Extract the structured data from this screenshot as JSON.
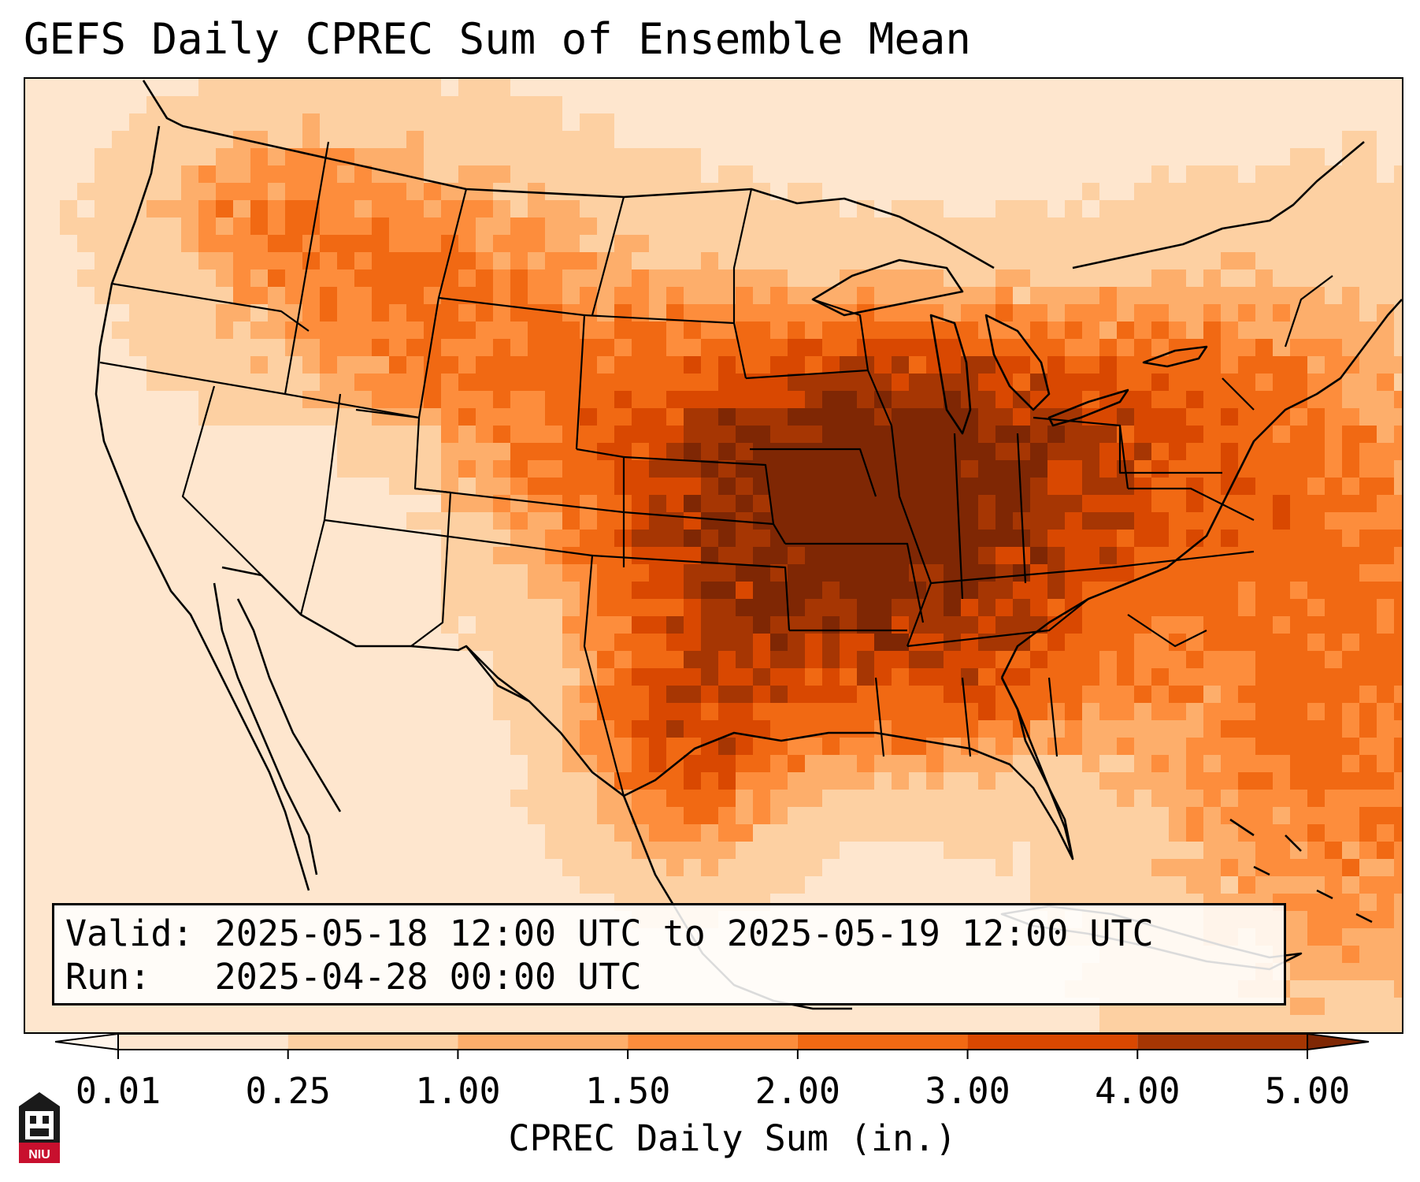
{
  "title": "GEFS Daily CPREC Sum of Ensemble Mean",
  "info": {
    "valid_line": "Valid: 2025-05-18 12:00 UTC to 2025-05-19 12:00 UTC",
    "run_line": "Run:   2025-04-28 00:00 UTC"
  },
  "colorbar": {
    "label": "CPREC Daily Sum (in.)",
    "ticks": [
      "0.01",
      "0.25",
      "1.00",
      "1.50",
      "2.00",
      "3.00",
      "4.00",
      "5.00"
    ],
    "colors": [
      "#fff5eb",
      "#fee6ce",
      "#fdd0a2",
      "#fdae6b",
      "#fd8d3c",
      "#f16913",
      "#d94801",
      "#a63603",
      "#7f2704"
    ]
  },
  "logo": {
    "text": "NIU",
    "colors": {
      "primary": "#c8102e",
      "dark": "#1a1a1a"
    }
  },
  "chart_data": {
    "type": "heatmap",
    "title": "GEFS Daily CPREC Sum of Ensemble Mean",
    "colorbar_label": "CPREC Daily Sum (in.)",
    "levels": [
      0.01,
      0.25,
      1.0,
      1.5,
      2.0,
      3.0,
      4.0,
      5.0
    ],
    "max_value_region": "Missouri / Kansas / Oklahoma border",
    "secondary_maxima": [
      "north-central Texas",
      "Tennessee / Kentucky",
      "western Atlantic east of the Carolinas"
    ],
    "dry_regions": [
      "California",
      "Nevada",
      "Arizona",
      "Baja California",
      "northern Mexico"
    ]
  }
}
